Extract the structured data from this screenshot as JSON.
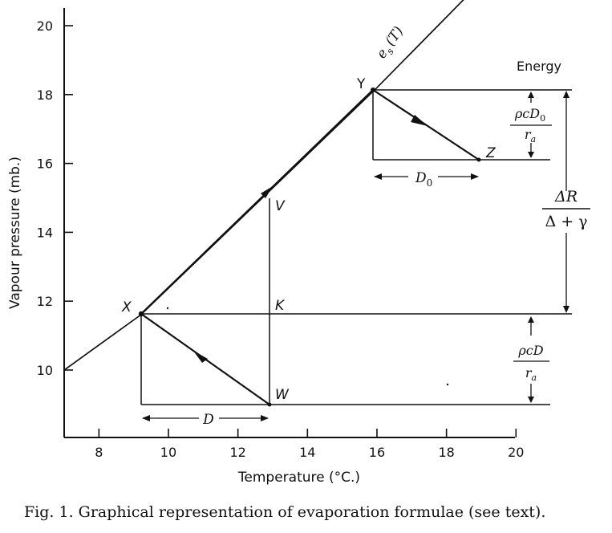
{
  "figure": {
    "caption": "Fig. 1.  Graphical representation of evaporation formulae (see text).",
    "energy_label": "Energy",
    "curve_label_e": "e",
    "curve_label_sub": "s",
    "curve_label_arg": "(T)",
    "points": {
      "X": "X",
      "Y": "Y",
      "Z": "Z",
      "V": "V",
      "K": "K",
      "W": "W"
    },
    "dim_D": "D",
    "dim_D0": "D",
    "dim_D0_sub": "0",
    "upper_flux_num": "ρcD",
    "upper_flux_num_sub": "0",
    "upper_flux_den": "r",
    "upper_flux_den_sub": "a",
    "lower_flux_num": "ρcD",
    "lower_flux_den": "r",
    "lower_flux_den_sub": "a",
    "big_frac_num": "ΔR",
    "big_frac_den": "Δ + γ"
  },
  "chart_data": {
    "type": "line",
    "xlabel": "Temperature (°C.)",
    "ylabel": "Vapour pressure (mb.)",
    "xlim": [
      7,
      20
    ],
    "ylim": [
      8.4,
      20.6
    ],
    "x_ticks": [
      8,
      10,
      12,
      14,
      16,
      18,
      20
    ],
    "y_ticks": [
      10,
      12,
      14,
      16,
      18,
      20
    ],
    "series": [
      {
        "name": "e_s(T)",
        "x": [
          7,
          9.2,
          16,
          19.9
        ],
        "y": [
          10.0,
          11.6,
          18.2,
          22.2
        ]
      }
    ],
    "points": {
      "X": [
        9.2,
        11.6
      ],
      "Y": [
        16.0,
        18.2
      ],
      "Z": [
        19.0,
        16.1
      ],
      "V": [
        13.0,
        15.0
      ],
      "K": [
        13.0,
        11.6
      ],
      "W": [
        13.0,
        9.0
      ]
    },
    "grid": false
  }
}
